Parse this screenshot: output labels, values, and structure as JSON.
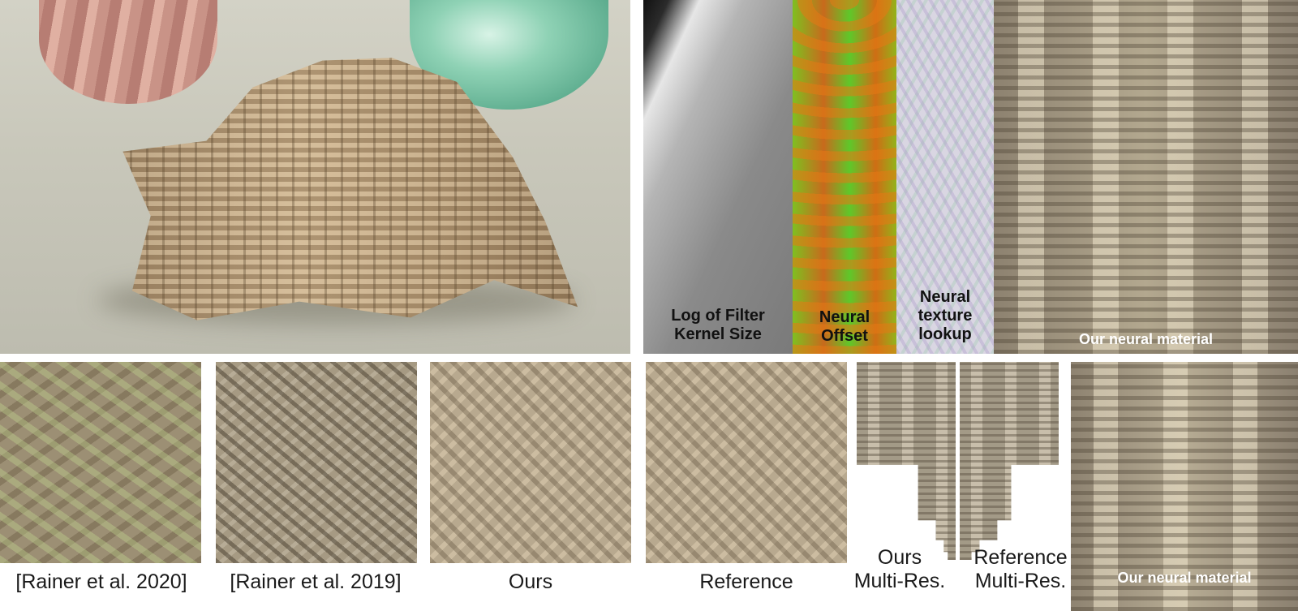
{
  "figure": {
    "top_labels": {
      "filter_kernel": [
        "Log of Filter",
        "Kernel Size"
      ],
      "neural_offset": [
        "Neural",
        "Offset"
      ],
      "neural_texture": [
        "Neural",
        "texture",
        "lookup"
      ],
      "neural_material": "Our neural material"
    },
    "bottom_captions": {
      "rainer_2020": "[Rainer et al. 2020]",
      "rainer_2019": "[Rainer et al. 2019]",
      "ours": "Ours",
      "reference": "Reference",
      "ours_multires": [
        "Ours",
        "Multi-Res."
      ],
      "reference_multires": [
        "Reference",
        "Multi-Res."
      ],
      "neural_material": "Our neural material"
    },
    "colors": {
      "label_dark": "#111111",
      "label_light": "#ffffff",
      "caption": "#1a1a1a"
    }
  }
}
